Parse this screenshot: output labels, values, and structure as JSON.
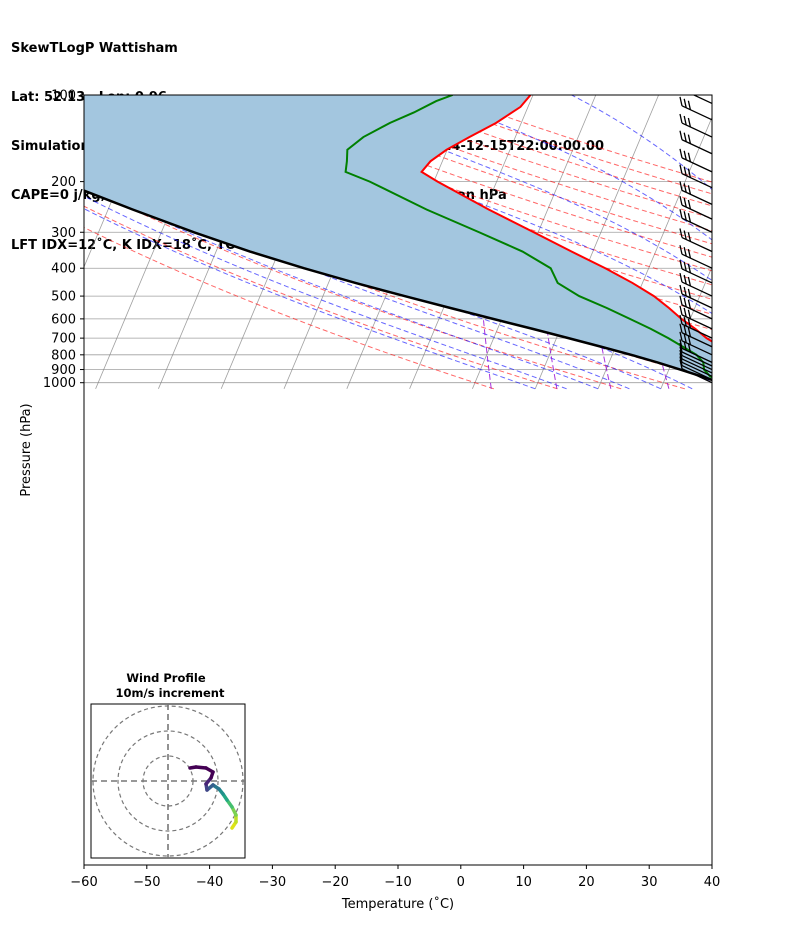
{
  "title_lines": [
    "SkewTLogP Wattisham",
    "Lat: 52.13   Lon: 0.96",
    "Simulation start time: 2024-12-14_00:00:00, Valid time: 2024-12-15T22:00:00.00",
    "CAPE=0 j/kg, CIN=0 j/kg, LCL=1006 hPa, LFC=nan hPa, EQ=nan hPa",
    "LFT IDX=12˚C, K IDX=18˚C, TOTAL TOTS=43˚C, SHWTR_IDX=7˚C"
  ],
  "chart_data": {
    "type": "line",
    "subtype": "skew-T log-p diagram",
    "xlabel": "Temperature (˚C)",
    "ylabel": "Pressure (hPa)",
    "xlim": [
      -60,
      40
    ],
    "ylim": [
      1050,
      100
    ],
    "y_scale": "log",
    "x_ticks": [
      -60,
      -50,
      -40,
      -30,
      -20,
      -10,
      0,
      10,
      20,
      30,
      40
    ],
    "x_tick_labels": [
      "−60",
      "−50",
      "−40",
      "−30",
      "−20",
      "−10",
      "0",
      "10",
      "20",
      "30",
      "40"
    ],
    "y_ticks": [
      100,
      200,
      300,
      400,
      500,
      600,
      700,
      800,
      900,
      1000
    ],
    "y_tick_labels": [
      "100",
      "200",
      "300",
      "400",
      "500",
      "600",
      "700",
      "800",
      "900",
      "1000"
    ],
    "grid": true,
    "colors": {
      "temperature": "#ff0000",
      "dewpoint": "#008000",
      "parcel": "#000000",
      "fill": "#a3c6df",
      "dry_adiabat": "#ff0000",
      "moist_adiabat": "#0000ff",
      "mixing_ratio": "#9400d3",
      "isotherm": "#808080"
    },
    "series": [
      {
        "role": "temperature",
        "points": [
          {
            "p": 1013,
            "t": 10.0
          },
          {
            "p": 1000,
            "t": 10.6
          },
          {
            "p": 950,
            "t": 12.4
          },
          {
            "p": 900,
            "t": 12.6
          },
          {
            "p": 850,
            "t": 11.5
          },
          {
            "p": 800,
            "t": 9.4
          },
          {
            "p": 750,
            "t": 6.7
          },
          {
            "p": 700,
            "t": 3.9
          },
          {
            "p": 650,
            "t": 1.5
          },
          {
            "p": 600,
            "t": -1.4
          },
          {
            "p": 550,
            "t": -4.1
          },
          {
            "p": 500,
            "t": -7.3
          },
          {
            "p": 450,
            "t": -11.6
          },
          {
            "p": 400,
            "t": -16.9
          },
          {
            "p": 350,
            "t": -23.4
          },
          {
            "p": 300,
            "t": -30.7
          },
          {
            "p": 250,
            "t": -39.4
          },
          {
            "p": 200,
            "t": -49.4
          },
          {
            "p": 185,
            "t": -52.6
          },
          {
            "p": 170,
            "t": -51.9
          },
          {
            "p": 155,
            "t": -50.1
          },
          {
            "p": 140,
            "t": -47.3
          },
          {
            "p": 125,
            "t": -44.0
          },
          {
            "p": 110,
            "t": -41.2
          },
          {
            "p": 100,
            "t": -40.4
          }
        ]
      },
      {
        "role": "dewpoint",
        "points": [
          {
            "p": 1013,
            "t": 9.9
          },
          {
            "p": 1000,
            "t": 9.3
          },
          {
            "p": 950,
            "t": 7.0
          },
          {
            "p": 900,
            "t": 5.6
          },
          {
            "p": 850,
            "t": 5.0
          },
          {
            "p": 800,
            "t": 3.4
          },
          {
            "p": 750,
            "t": 0.7
          },
          {
            "p": 700,
            "t": -2.2
          },
          {
            "p": 650,
            "t": -5.6
          },
          {
            "p": 600,
            "t": -9.6
          },
          {
            "p": 550,
            "t": -14.0
          },
          {
            "p": 500,
            "t": -19.2
          },
          {
            "p": 450,
            "t": -23.5
          },
          {
            "p": 400,
            "t": -25.6
          },
          {
            "p": 350,
            "t": -31.2
          },
          {
            "p": 300,
            "t": -39.4
          },
          {
            "p": 250,
            "t": -49.3
          },
          {
            "p": 200,
            "t": -60.2
          },
          {
            "p": 185,
            "t": -64.7
          },
          {
            "p": 170,
            "t": -65.2
          },
          {
            "p": 155,
            "t": -65.9
          },
          {
            "p": 140,
            "t": -64.2
          },
          {
            "p": 125,
            "t": -60.9
          },
          {
            "p": 115,
            "t": -57.8
          },
          {
            "p": 105,
            "t": -55.0
          },
          {
            "p": 100,
            "t": -52.8
          }
        ]
      },
      {
        "role": "parcel",
        "points": [
          {
            "p": 1013,
            "t": 10.0
          },
          {
            "p": 1000,
            "t": 9.0
          },
          {
            "p": 950,
            "t": 5.6
          },
          {
            "p": 900,
            "t": 1.8
          },
          {
            "p": 850,
            "t": -2.3
          },
          {
            "p": 800,
            "t": -7.0
          },
          {
            "p": 750,
            "t": -12.3
          },
          {
            "p": 700,
            "t": -18.1
          },
          {
            "p": 650,
            "t": -24.4
          },
          {
            "p": 600,
            "t": -31.4
          },
          {
            "p": 550,
            "t": -38.9
          },
          {
            "p": 500,
            "t": -47.0
          },
          {
            "p": 450,
            "t": -55.7
          },
          {
            "p": 400,
            "t": -64.9
          },
          {
            "p": 350,
            "t": -74.6
          },
          {
            "p": 300,
            "t": -84.8
          },
          {
            "p": 250,
            "t": -96.1
          },
          {
            "p": 200,
            "t": -109.4
          },
          {
            "p": 150,
            "t": -124.8
          },
          {
            "p": 125,
            "t": -133.9
          },
          {
            "p": 100,
            "t": -144.4
          }
        ]
      }
    ],
    "wind_barbs": [
      {
        "p": 1000
      },
      {
        "p": 975
      },
      {
        "p": 950
      },
      {
        "p": 925
      },
      {
        "p": 900
      },
      {
        "p": 875
      },
      {
        "p": 850
      },
      {
        "p": 800
      },
      {
        "p": 750
      },
      {
        "p": 700
      },
      {
        "p": 650
      },
      {
        "p": 600
      },
      {
        "p": 550
      },
      {
        "p": 500
      },
      {
        "p": 450
      },
      {
        "p": 400
      },
      {
        "p": 350
      },
      {
        "p": 300
      },
      {
        "p": 270
      },
      {
        "p": 240
      },
      {
        "p": 210
      },
      {
        "p": 185
      },
      {
        "p": 160
      },
      {
        "p": 140
      },
      {
        "p": 122
      },
      {
        "p": 107
      }
    ],
    "hodograph": {
      "title": "Wind Profile",
      "subtitle": "10m/s increment",
      "rings": [
        1,
        2,
        3
      ]
    }
  }
}
